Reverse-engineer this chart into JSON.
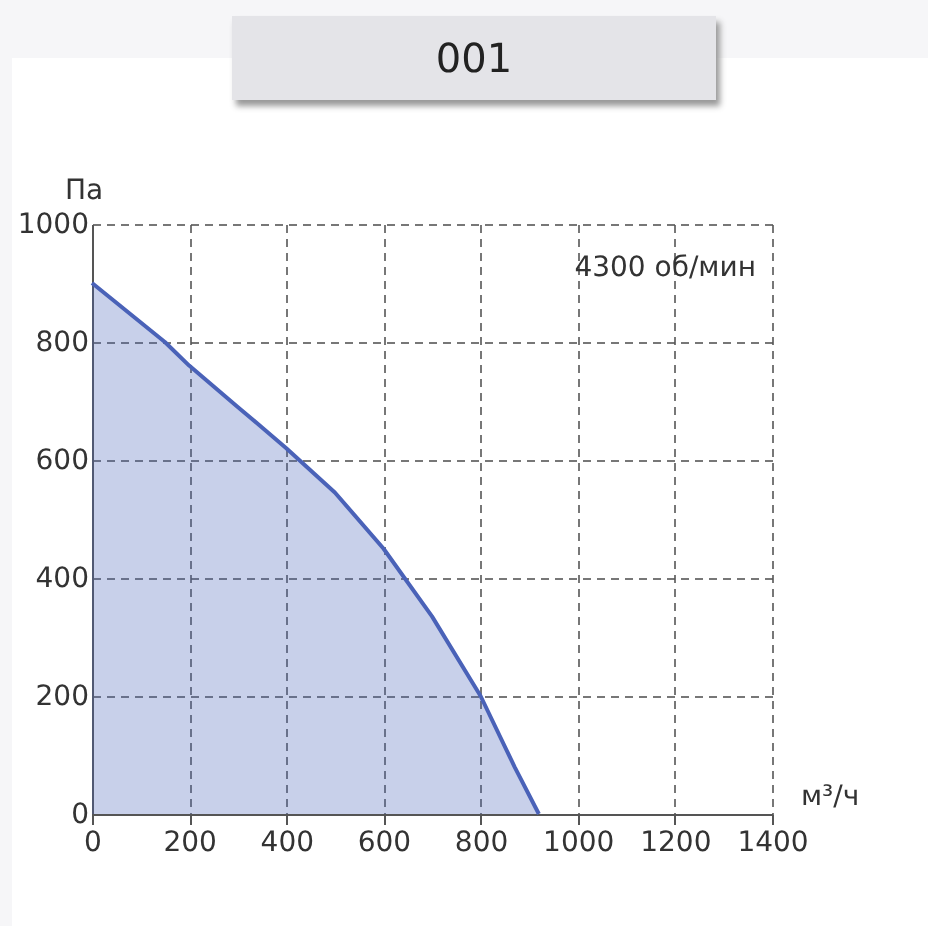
{
  "chart_data": {
    "type": "area",
    "title": "001",
    "xlabel": "м³/ч",
    "ylabel": "Па",
    "annotations": [
      "4300 об/мин"
    ],
    "x": [
      0,
      150,
      200,
      300,
      400,
      500,
      600,
      700,
      800,
      870,
      920
    ],
    "series": [
      {
        "color": "#4a62b8",
        "values": [
          900,
          800,
          760,
          690,
          620,
          545,
          450,
          335,
          200,
          80,
          0
        ]
      }
    ],
    "xlim": [
      0,
      1400
    ],
    "xticks": [
      0,
      200,
      400,
      600,
      800,
      1000,
      1200,
      1400
    ],
    "ylim": [
      0,
      1000
    ],
    "yticks": [
      0,
      200,
      400,
      600,
      800,
      1000
    ],
    "grid": true,
    "line_style": "solid"
  }
}
